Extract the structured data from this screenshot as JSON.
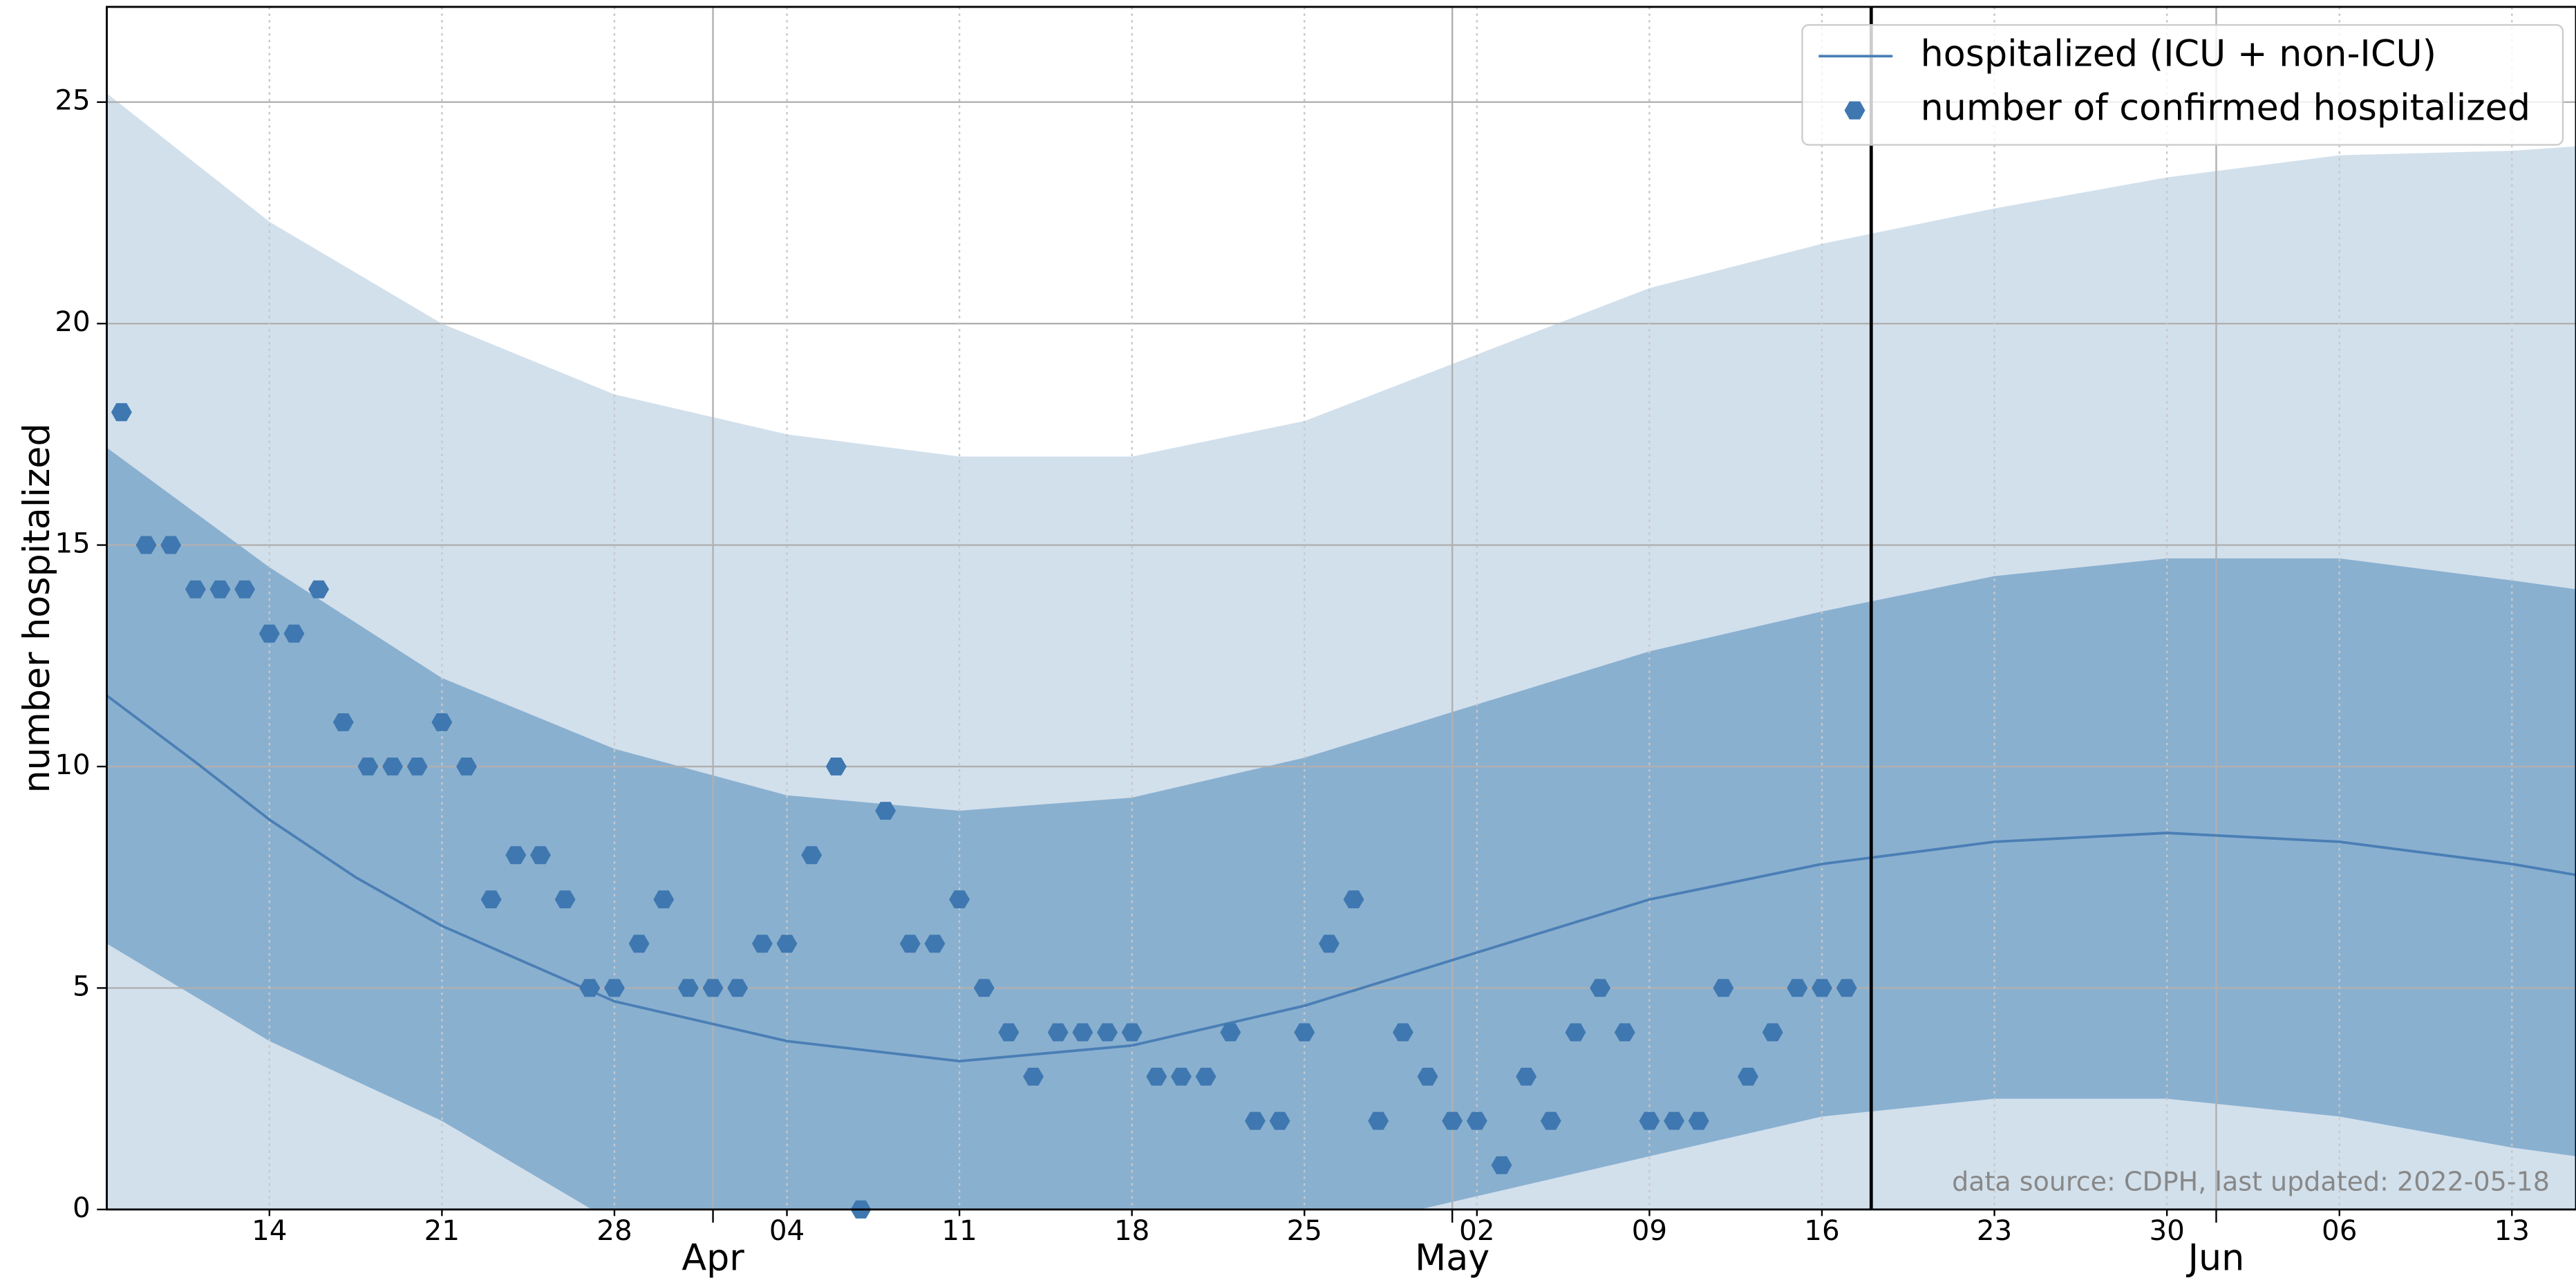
{
  "chart_data": {
    "type": "line",
    "ylabel": "number hospitalized",
    "annotation": "data source: CDPH, last updated: 2022-05-18",
    "xlim": [
      66.4,
      166.6
    ],
    "ylim": [
      0,
      27.15
    ],
    "yticks": [
      0,
      5,
      10,
      15,
      20,
      25
    ],
    "xticks": [
      {
        "value": 73,
        "label": "14"
      },
      {
        "value": 80,
        "label": "21"
      },
      {
        "value": 87,
        "label": "28"
      },
      {
        "value": 94,
        "label": "04"
      },
      {
        "value": 101,
        "label": "11"
      },
      {
        "value": 108,
        "label": "18"
      },
      {
        "value": 115,
        "label": "25"
      },
      {
        "value": 122,
        "label": "02"
      },
      {
        "value": 129,
        "label": "09"
      },
      {
        "value": 136,
        "label": "16"
      },
      {
        "value": 143,
        "label": "23"
      },
      {
        "value": 150,
        "label": "30"
      },
      {
        "value": 157,
        "label": "06"
      },
      {
        "value": 164,
        "label": "13"
      }
    ],
    "xticks_major": [
      {
        "value": 91,
        "label": "Apr"
      },
      {
        "value": 121,
        "label": "May"
      },
      {
        "value": 152,
        "label": "Jun"
      }
    ],
    "grid": true,
    "legend": "upper right",
    "vline": 138,
    "bands": [
      {
        "color": "#d2e0ec",
        "x": [
          66.4,
          73,
          80,
          87,
          94,
          101,
          108,
          115,
          122,
          129,
          136,
          143,
          150,
          157,
          164,
          166.6
        ],
        "upper": [
          25.2,
          22.3,
          20.0,
          18.4,
          17.5,
          17.0,
          17.0,
          17.8,
          19.3,
          20.8,
          21.8,
          22.6,
          23.3,
          23.8,
          23.9,
          24.0
        ],
        "lower": [
          0,
          0,
          0,
          0,
          0,
          0,
          0,
          0,
          0,
          0,
          0,
          0,
          0,
          0,
          0,
          0
        ]
      },
      {
        "color": "#8ab0d0",
        "x": [
          66.4,
          73,
          80,
          87,
          94,
          101,
          108,
          115,
          122,
          129,
          136,
          143,
          150,
          157,
          164,
          166.6
        ],
        "upper": [
          17.2,
          14.5,
          12.0,
          10.4,
          9.35,
          9.0,
          9.3,
          10.2,
          11.4,
          12.6,
          13.5,
          14.3,
          14.7,
          14.7,
          14.2,
          14.0
        ],
        "lower": [
          6.0,
          3.8,
          2.0,
          -0.3,
          -1.2,
          -1.6,
          -1.3,
          -0.6,
          0.3,
          1.2,
          2.1,
          2.5,
          2.5,
          2.1,
          1.4,
          1.2
        ]
      }
    ],
    "series": [
      {
        "name": "hospitalized (ICU + non-ICU)",
        "color": "#4a7fb5",
        "kind": "line",
        "x": [
          66.4,
          70,
          73,
          76.5,
          80,
          87,
          94,
          101,
          108,
          115,
          122,
          129,
          136,
          143,
          150,
          157,
          164,
          166.6
        ],
        "values": [
          11.6,
          10.1,
          8.8,
          7.5,
          6.4,
          4.7,
          3.8,
          3.35,
          3.7,
          4.6,
          5.8,
          7.0,
          7.8,
          8.3,
          8.5,
          8.3,
          7.8,
          7.55
        ]
      },
      {
        "name": "number of confirmed hospitalized",
        "color": "#3f78b0",
        "kind": "scatter",
        "x": [
          67,
          68,
          69,
          70,
          71,
          72,
          73,
          74,
          75,
          76,
          77,
          78,
          79,
          80,
          81,
          82,
          83,
          84,
          85,
          86,
          87,
          88,
          89,
          90,
          91,
          92,
          93,
          94,
          95,
          96,
          97,
          98,
          99,
          100,
          101,
          102,
          103,
          104,
          105,
          106,
          107,
          108,
          109,
          110,
          111,
          112,
          113,
          114,
          115,
          116,
          117,
          118,
          119,
          120,
          121,
          122,
          123,
          124,
          125,
          126,
          127,
          128,
          129,
          130,
          131,
          132,
          133,
          134,
          135,
          136,
          137
        ],
        "values": [
          18,
          15,
          15,
          14,
          14,
          14,
          13,
          13,
          14,
          11,
          10,
          10,
          10,
          11,
          10,
          7,
          8,
          8,
          7,
          5,
          5,
          6,
          7,
          5,
          5,
          5,
          6,
          6,
          8,
          10,
          0,
          9,
          6,
          6,
          7,
          5,
          4,
          3,
          4,
          4,
          4,
          4,
          3,
          3,
          3,
          4,
          2,
          2,
          4,
          6,
          7,
          2,
          4,
          3,
          2,
          2,
          1,
          3,
          2,
          4,
          5,
          4,
          2,
          2,
          2,
          5,
          3,
          4,
          5,
          5,
          5
        ]
      }
    ]
  }
}
